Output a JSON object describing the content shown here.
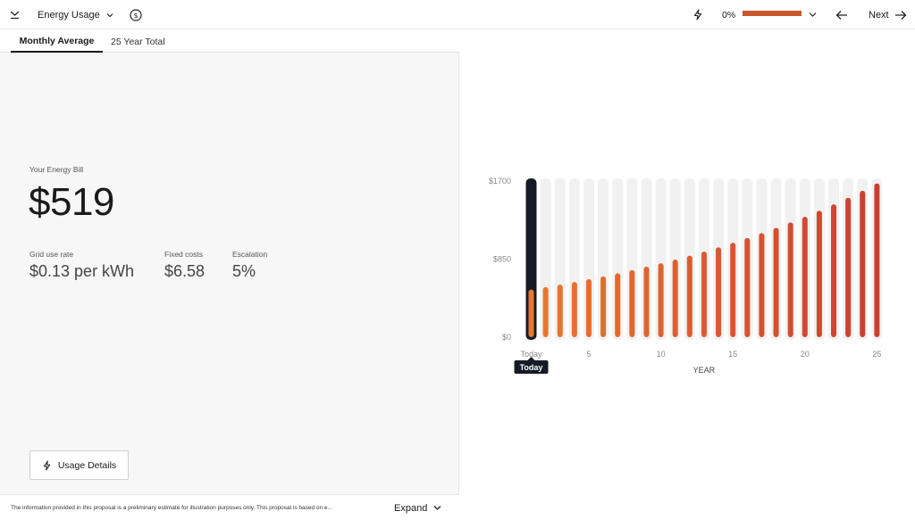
{
  "header": {
    "menu_icon": "collapse-chevron-icon",
    "title": "Energy Usage",
    "title_chevron_icon": "chevron-down-icon",
    "dollar_icon": "dollar-circle-icon",
    "bolt_icon": "lightning-icon",
    "progress_label": "0%",
    "progress_fraction": 1.0,
    "progress_color": "#c8562b",
    "progress_chevron_icon": "chevron-down-icon",
    "back_icon": "arrow-left-icon",
    "next_label": "Next",
    "next_icon": "arrow-right-icon"
  },
  "tabs": [
    {
      "label": "Monthly Average",
      "active": true
    },
    {
      "label": "25 Year Total",
      "active": false
    }
  ],
  "bill": {
    "label": "Your Energy Bill",
    "value": "$519"
  },
  "stats": [
    {
      "label": "Grid use rate",
      "value": "$0.13 per kWh"
    },
    {
      "label": "Fixed costs",
      "value": "$6.58"
    },
    {
      "label": "Escalation",
      "value": "5%"
    }
  ],
  "usage_button": {
    "label": "Usage Details",
    "icon": "lightning-icon"
  },
  "footer": {
    "disclaimer": "The information provided in this proposal is a preliminary estimate for illustration purposes only. This proposal is based on e...",
    "expand_label": "Expand",
    "expand_icon": "chevron-down-icon"
  },
  "chart_data": {
    "type": "bar",
    "xlabel": "YEAR",
    "ylabel": "",
    "ylim": [
      0,
      1700
    ],
    "y_ticks": [
      "$0",
      "$850",
      "$1700"
    ],
    "y_tick_values": [
      0,
      850,
      1700
    ],
    "x_tick_labels": [
      "Today",
      "5",
      "10",
      "15",
      "20",
      "25"
    ],
    "x_tick_positions": [
      1,
      5,
      10,
      15,
      20,
      25
    ],
    "x": [
      1,
      2,
      3,
      4,
      5,
      6,
      7,
      8,
      9,
      10,
      11,
      12,
      13,
      14,
      15,
      16,
      17,
      18,
      19,
      20,
      21,
      22,
      23,
      24,
      25
    ],
    "values": [
      519,
      545,
      572,
      601,
      631,
      662,
      696,
      730,
      767,
      805,
      845,
      888,
      932,
      979,
      1028,
      1079,
      1133,
      1190,
      1249,
      1312,
      1377,
      1446,
      1518,
      1594,
      1674
    ],
    "selected_index": 0,
    "tooltip_label": "Today",
    "grid": false,
    "colors": {
      "track": "#f1f1f1",
      "selected_track": "#141b26",
      "bar_start": "#e8782e",
      "bar_end": "#cc3d30"
    }
  }
}
